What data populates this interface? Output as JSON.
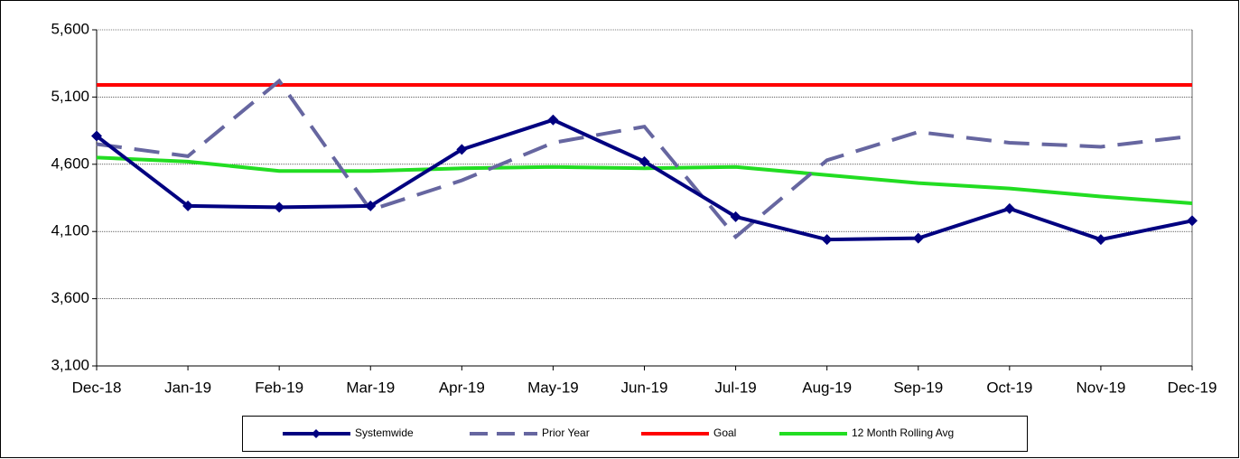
{
  "chart_data": {
    "type": "line",
    "categories": [
      "Dec-18",
      "Jan-19",
      "Feb-19",
      "Mar-19",
      "Apr-19",
      "May-19",
      "Jun-19",
      "Jul-19",
      "Aug-19",
      "Sep-19",
      "Oct-19",
      "Nov-19",
      "Dec-19"
    ],
    "series": [
      {
        "name": "Systemwide",
        "color": "#000080",
        "dashed": false,
        "marker": "diamond",
        "values": [
          4810,
          4290,
          4280,
          4290,
          4710,
          4930,
          4620,
          4210,
          4040,
          4050,
          4270,
          4040,
          4180
        ]
      },
      {
        "name": "Prior Year",
        "color": "#6666a0",
        "dashed": true,
        "marker": "none",
        "values": [
          4750,
          4660,
          5220,
          4260,
          4480,
          4760,
          4880,
          4060,
          4630,
          4840,
          4760,
          4730,
          4810
        ]
      },
      {
        "name": "Goal",
        "color": "#ff0000",
        "dashed": false,
        "marker": "none",
        "values": [
          5190,
          5190,
          5190,
          5190,
          5190,
          5190,
          5190,
          5190,
          5190,
          5190,
          5190,
          5190,
          5190
        ]
      },
      {
        "name": "12 Month Rolling Avg",
        "color": "#22dd22",
        "dashed": false,
        "marker": "none",
        "values": [
          4650,
          4620,
          4550,
          4550,
          4570,
          4580,
          4570,
          4580,
          4520,
          4460,
          4420,
          4360,
          4310
        ]
      }
    ],
    "ylim": [
      3100,
      5600
    ],
    "yticks": [
      {
        "value": 3100,
        "label": "3,100"
      },
      {
        "value": 3600,
        "label": "3,600"
      },
      {
        "value": 4100,
        "label": "4,100"
      },
      {
        "value": 4600,
        "label": "4,600"
      },
      {
        "value": 5100,
        "label": "5,100"
      },
      {
        "value": 5600,
        "label": "5,600"
      }
    ],
    "grid": true,
    "legend": "bottom"
  }
}
